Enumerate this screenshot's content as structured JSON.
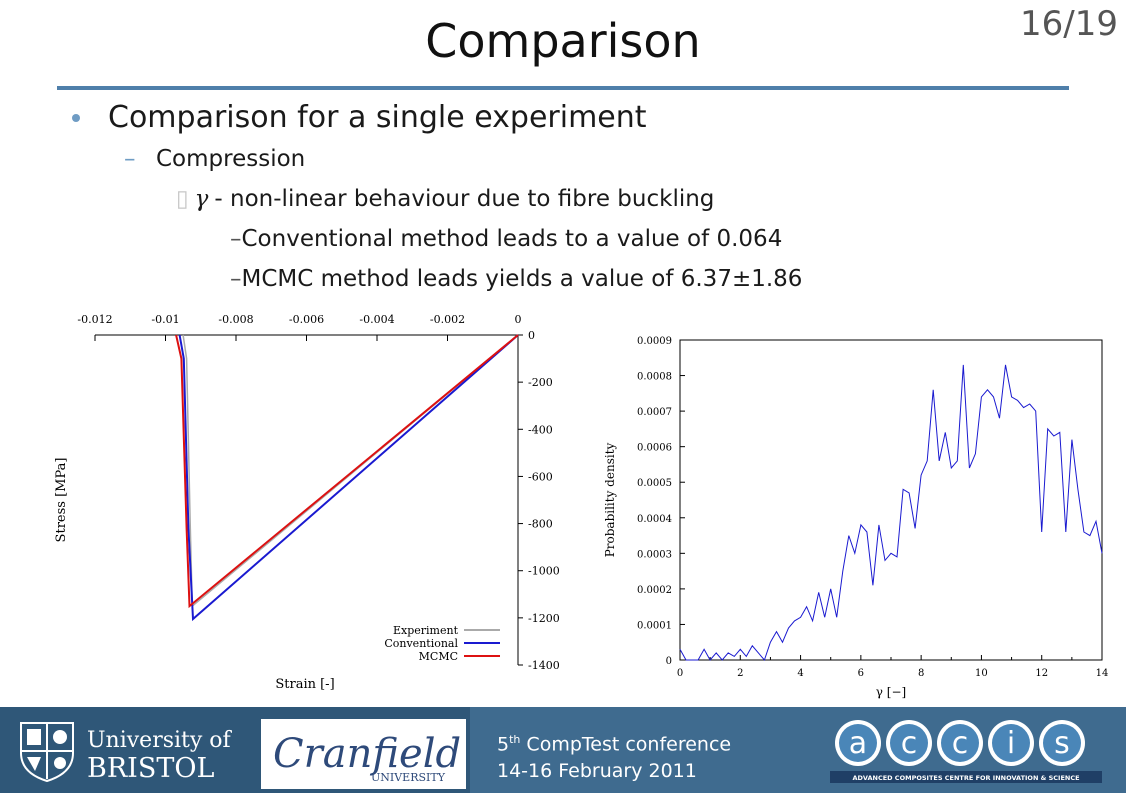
{
  "slide": {
    "title": "Comparison",
    "page": "16/19",
    "bullets": {
      "level1": "Comparison for a single experiment",
      "level2": "Compression",
      "level3_symbol": "γ",
      "level3": "- non-linear behaviour due to fibre buckling",
      "level4": [
        "Conventional method leads to a value of 0.064",
        "MCMC method leads yields a value of 6.37±1.86"
      ]
    }
  },
  "footer": {
    "bristol_line1": "University of",
    "bristol_line2": "BRISTOL",
    "cranfield_name": "Cranfield",
    "cranfield_sub": "UNIVERSITY",
    "conf_line1_num": "5",
    "conf_line1_sup": "th",
    "conf_line1_rest": " CompTest conference",
    "conf_line2": "14-16 February 2011",
    "accis_letters": [
      "a",
      "c",
      "c",
      "i",
      "s"
    ],
    "accis_tagline": "ADVANCED COMPOSITES CENTRE FOR INNOVATION & SCIENCE",
    "colors": {
      "footer_bg": "#3f6b8f",
      "accent": "#4f7faa"
    }
  },
  "chart_data": [
    {
      "type": "line",
      "xlabel": "Strain [-]",
      "ylabel": "Stress [MPa]",
      "xlim": [
        -0.012,
        0
      ],
      "ylim": [
        -1400,
        0
      ],
      "x_ticks": [
        "-0.012",
        "-0.01",
        "-0.008",
        "-0.006",
        "-0.004",
        "-0.002",
        "0"
      ],
      "y_ticks": [
        "0",
        "-200",
        "-400",
        "-600",
        "-800",
        "-1000",
        "-1200",
        "-1400"
      ],
      "x_axis": "top",
      "y_axis": "right",
      "legend_position": "bottom-right",
      "series": [
        {
          "name": "Experiment",
          "color": "#aaaaaa",
          "points": [
            [
              0,
              0
            ],
            [
              -0.00924,
              -1150
            ],
            [
              -0.0093,
              -800
            ],
            [
              -0.0094,
              -100
            ],
            [
              -0.0095,
              0
            ]
          ]
        },
        {
          "name": "Conventional",
          "color": "#1a1ad0",
          "points": [
            [
              0,
              0
            ],
            [
              -0.00922,
              -1205
            ],
            [
              -0.00935,
              -820
            ],
            [
              -0.00948,
              -100
            ],
            [
              -0.0096,
              0
            ]
          ]
        },
        {
          "name": "MCMC",
          "color": "#dd1111",
          "points": [
            [
              0,
              0
            ],
            [
              -0.00932,
              -1150
            ],
            [
              -0.0094,
              -820
            ],
            [
              -0.00955,
              -100
            ],
            [
              -0.0097,
              0
            ]
          ]
        }
      ]
    },
    {
      "type": "line",
      "xlabel": "γ [−]",
      "ylabel": "Probability density",
      "xlim": [
        0,
        14
      ],
      "ylim": [
        0,
        0.0009
      ],
      "x_ticks": [
        "0",
        "2",
        "4",
        "6",
        "8",
        "10",
        "12",
        "14"
      ],
      "y_ticks": [
        "0",
        "0.0001",
        "0.0002",
        "0.0003",
        "0.0004",
        "0.0005",
        "0.0006",
        "0.0007",
        "0.0008",
        "0.0009"
      ],
      "series": [
        {
          "color": "#1a1ad0",
          "points": [
            [
              0,
              3e-05
            ],
            [
              0.2,
              0
            ],
            [
              0.6,
              0
            ],
            [
              0.8,
              3e-05
            ],
            [
              1,
              0
            ],
            [
              1.2,
              2e-05
            ],
            [
              1.4,
              0
            ],
            [
              1.6,
              2e-05
            ],
            [
              1.8,
              1e-05
            ],
            [
              2,
              3e-05
            ],
            [
              2.2,
              1e-05
            ],
            [
              2.4,
              4e-05
            ],
            [
              2.6,
              2e-05
            ],
            [
              2.8,
              0
            ],
            [
              3,
              5e-05
            ],
            [
              3.2,
              8e-05
            ],
            [
              3.4,
              5e-05
            ],
            [
              3.6,
              9e-05
            ],
            [
              3.8,
              0.00011
            ],
            [
              4,
              0.00012
            ],
            [
              4.2,
              0.00015
            ],
            [
              4.4,
              0.00011
            ],
            [
              4.6,
              0.00019
            ],
            [
              4.8,
              0.00012
            ],
            [
              5,
              0.0002
            ],
            [
              5.2,
              0.00012
            ],
            [
              5.4,
              0.00025
            ],
            [
              5.6,
              0.00035
            ],
            [
              5.8,
              0.0003
            ],
            [
              6,
              0.00038
            ],
            [
              6.2,
              0.00036
            ],
            [
              6.4,
              0.00021
            ],
            [
              6.6,
              0.00038
            ],
            [
              6.8,
              0.00028
            ],
            [
              7,
              0.0003
            ],
            [
              7.2,
              0.00029
            ],
            [
              7.4,
              0.00048
            ],
            [
              7.6,
              0.00047
            ],
            [
              7.8,
              0.00037
            ],
            [
              8,
              0.00052
            ],
            [
              8.2,
              0.00056
            ],
            [
              8.4,
              0.00076
            ],
            [
              8.6,
              0.00056
            ],
            [
              8.8,
              0.00064
            ],
            [
              9,
              0.00054
            ],
            [
              9.2,
              0.00056
            ],
            [
              9.4,
              0.00083
            ],
            [
              9.6,
              0.00054
            ],
            [
              9.8,
              0.00058
            ],
            [
              10,
              0.00074
            ],
            [
              10.2,
              0.00076
            ],
            [
              10.4,
              0.00074
            ],
            [
              10.6,
              0.00068
            ],
            [
              10.8,
              0.00083
            ],
            [
              11,
              0.00074
            ],
            [
              11.2,
              0.00073
            ],
            [
              11.4,
              0.00071
            ],
            [
              11.6,
              0.00072
            ],
            [
              11.8,
              0.0007
            ],
            [
              12,
              0.00036
            ],
            [
              12.2,
              0.00065
            ],
            [
              12.4,
              0.00063
            ],
            [
              12.6,
              0.00064
            ],
            [
              12.8,
              0.00036
            ],
            [
              13,
              0.00062
            ],
            [
              13.2,
              0.00048
            ],
            [
              13.4,
              0.00036
            ],
            [
              13.6,
              0.00035
            ],
            [
              13.8,
              0.00039
            ],
            [
              14,
              0.0003
            ]
          ]
        }
      ]
    }
  ]
}
